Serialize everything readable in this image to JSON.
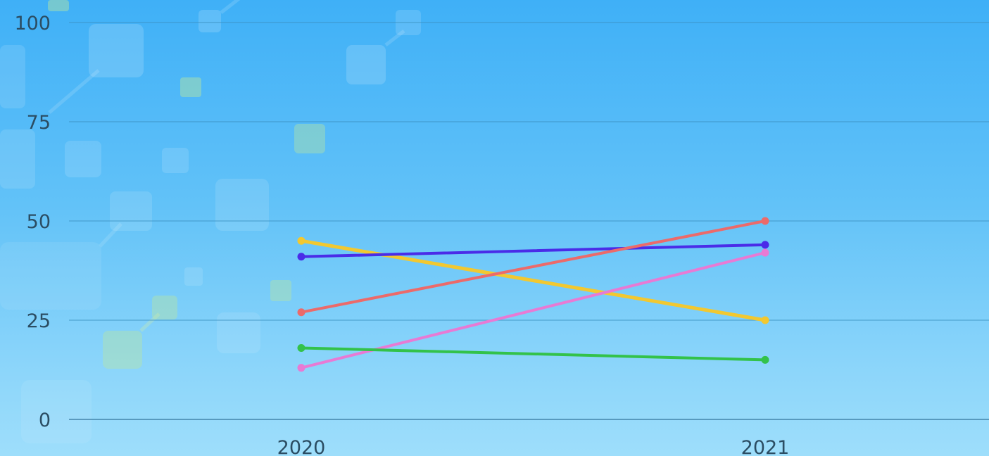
{
  "chart_data": {
    "type": "line",
    "x": [
      "2020",
      "2021"
    ],
    "ylim": [
      0,
      100
    ],
    "yticks": [
      "0",
      "25",
      "50",
      "75",
      "100"
    ],
    "grid": true,
    "legend": "none",
    "title": "",
    "xlabel": "",
    "ylabel": "",
    "series": [
      {
        "color": "#f2c830",
        "values": [
          45,
          25
        ]
      },
      {
        "color": "#4a2ce8",
        "values": [
          41,
          44
        ]
      },
      {
        "color": "#ec6a6a",
        "values": [
          27,
          50
        ]
      },
      {
        "color": "#e87ad4",
        "values": [
          13,
          42
        ]
      },
      {
        "color": "#33c24a",
        "values": [
          18,
          15
        ]
      }
    ]
  }
}
